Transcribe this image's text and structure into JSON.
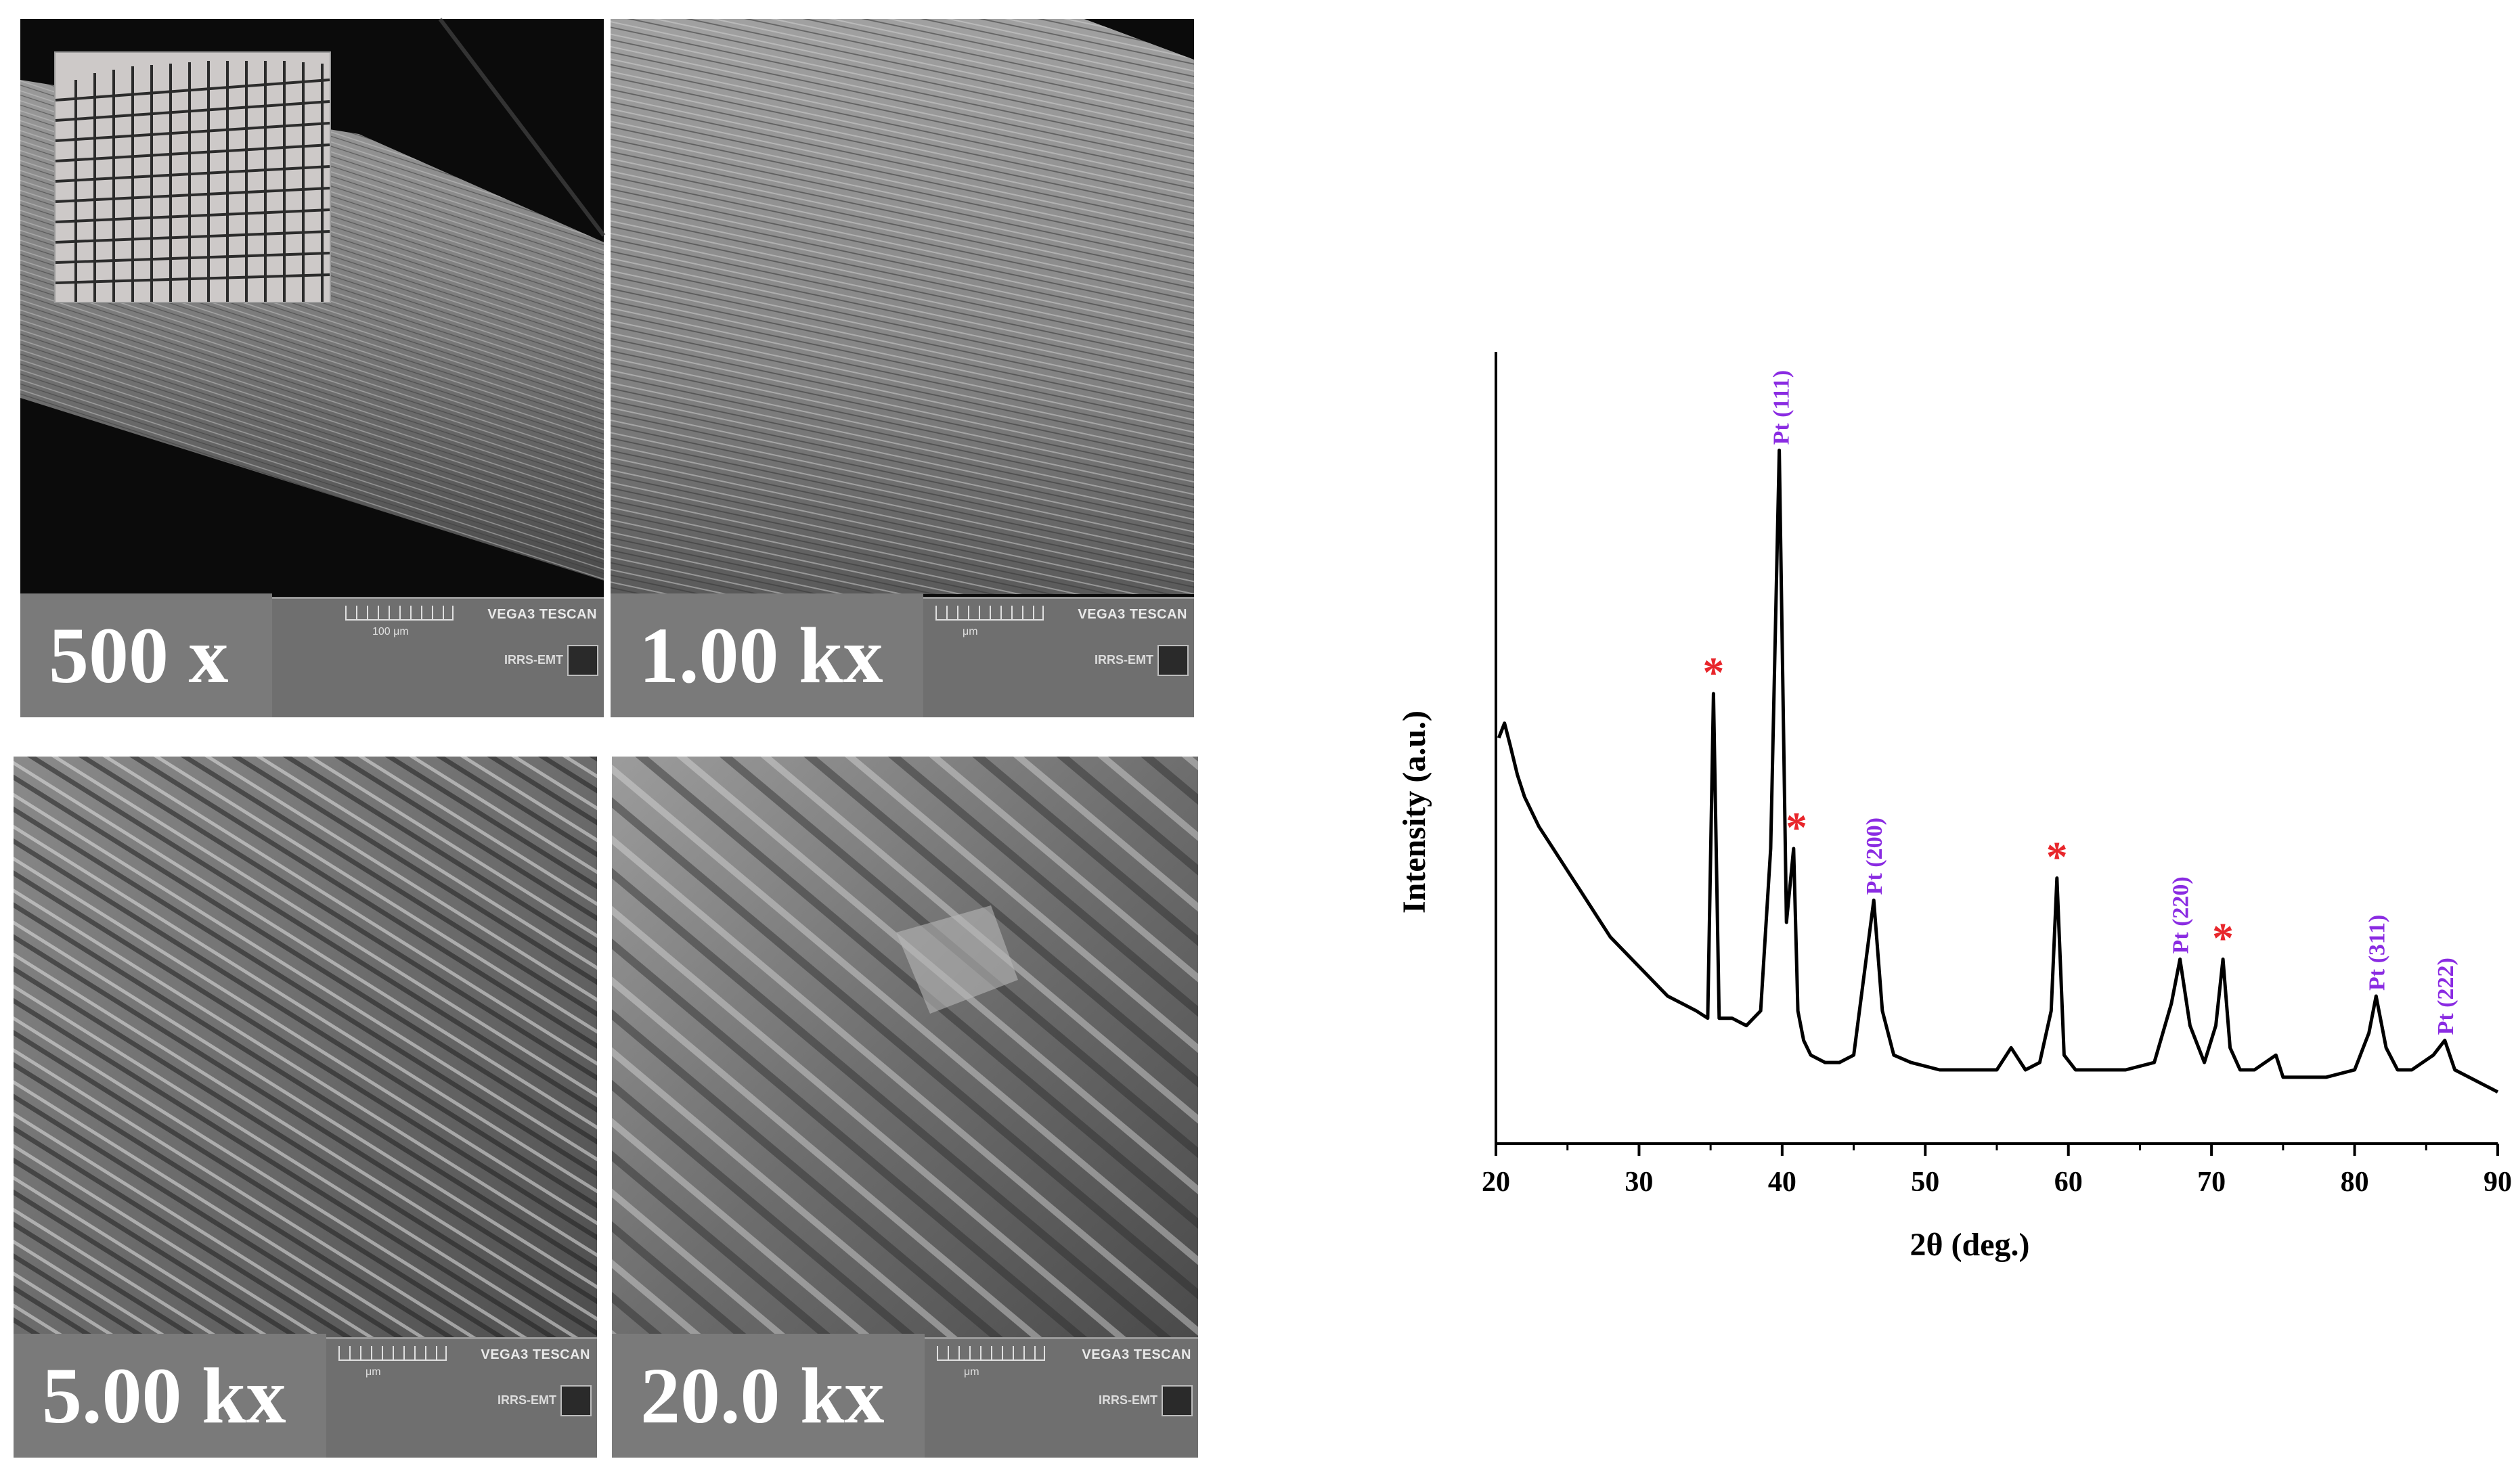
{
  "sem_panels": [
    {
      "magnification": "500 x",
      "scale_bar": "100 μm",
      "instrument": "VEGA3 TESCAN",
      "lab": "IRRS-EMT",
      "inset": "mesh-photo-icon"
    },
    {
      "magnification": "1.00 kx",
      "scale_bar": "μm",
      "instrument": "VEGA3 TESCAN",
      "lab": "IRRS-EMT"
    },
    {
      "magnification": "5.00 kx",
      "scale_bar": "μm",
      "instrument": "VEGA3 TESCAN",
      "lab": "IRRS-EMT"
    },
    {
      "magnification": "20.0 kx",
      "scale_bar": "μm",
      "instrument": "VEGA3 TESCAN",
      "lab": "IRRS-EMT"
    }
  ],
  "chart_data": {
    "type": "line",
    "title": "",
    "xlabel": "2θ (deg.)",
    "ylabel": "Intensity (a.u.)",
    "xlim": [
      20,
      90
    ],
    "ylim": [
      0,
      1
    ],
    "xticks": [
      20,
      30,
      40,
      50,
      60,
      70,
      80,
      90
    ],
    "grid": false,
    "line_color": "#000000",
    "series": [
      {
        "x": [
          20.2,
          20.6,
          21.0,
          21.5,
          22,
          23,
          24,
          25,
          26,
          27,
          28,
          29,
          30,
          31,
          32,
          33,
          34,
          34.8,
          35.2,
          35.6,
          36.5,
          37.5,
          38.5,
          39.2,
          39.8,
          40.3,
          40.8,
          41.1,
          41.5,
          42,
          43,
          44,
          45,
          45.8,
          46.4,
          47,
          47.8,
          49,
          51,
          53,
          55,
          56,
          57,
          58,
          58.8,
          59.2,
          59.7,
          60.5,
          62,
          64,
          66,
          67.2,
          67.8,
          68.5,
          69.5,
          70.3,
          70.8,
          71.3,
          72,
          73,
          74.5,
          75,
          76,
          78,
          80,
          81,
          81.5,
          82.2,
          83,
          84,
          85.5,
          86.3,
          87,
          88,
          89,
          90
        ],
        "y": [
          0.55,
          0.57,
          0.54,
          0.5,
          0.47,
          0.43,
          0.4,
          0.37,
          0.34,
          0.31,
          0.28,
          0.26,
          0.24,
          0.22,
          0.2,
          0.19,
          0.18,
          0.17,
          0.61,
          0.17,
          0.17,
          0.16,
          0.18,
          0.4,
          0.94,
          0.3,
          0.4,
          0.18,
          0.14,
          0.12,
          0.11,
          0.11,
          0.12,
          0.24,
          0.33,
          0.18,
          0.12,
          0.11,
          0.1,
          0.1,
          0.1,
          0.13,
          0.1,
          0.11,
          0.18,
          0.36,
          0.12,
          0.1,
          0.1,
          0.1,
          0.11,
          0.19,
          0.25,
          0.16,
          0.11,
          0.16,
          0.25,
          0.13,
          0.1,
          0.1,
          0.12,
          0.09,
          0.09,
          0.09,
          0.1,
          0.15,
          0.2,
          0.13,
          0.1,
          0.1,
          0.12,
          0.14,
          0.1,
          0.09,
          0.08,
          0.07
        ]
      }
    ],
    "annotations": [
      {
        "label": "Pt (111)",
        "x": 39.9,
        "y": 0.94,
        "color": "#8a2be2"
      },
      {
        "label": "Pt (200)",
        "x": 46.4,
        "y": 0.33,
        "color": "#8a2be2"
      },
      {
        "label": "Pt (220)",
        "x": 67.8,
        "y": 0.25,
        "color": "#8a2be2"
      },
      {
        "label": "Pt (311)",
        "x": 81.5,
        "y": 0.2,
        "color": "#8a2be2"
      },
      {
        "label": "Pt (222)",
        "x": 86.3,
        "y": 0.14,
        "color": "#8a2be2"
      }
    ],
    "markers": [
      {
        "label": "*",
        "x": 35.2,
        "y": 0.61,
        "color": "#e8262b"
      },
      {
        "label": "*",
        "x": 41.0,
        "y": 0.4,
        "color": "#e8262b"
      },
      {
        "label": "*",
        "x": 59.2,
        "y": 0.36,
        "color": "#e8262b"
      },
      {
        "label": "*",
        "x": 70.8,
        "y": 0.25,
        "color": "#e8262b"
      }
    ]
  }
}
